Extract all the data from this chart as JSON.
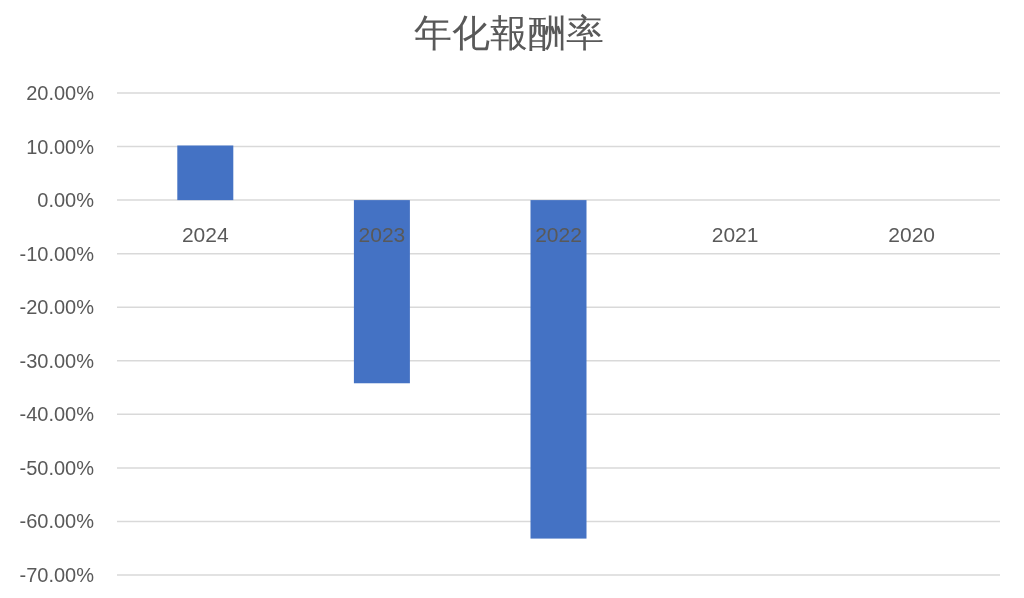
{
  "chart_data": {
    "type": "bar",
    "title": "年化報酬率",
    "categories": [
      "2024",
      "2023",
      "2022",
      "2021",
      "2020"
    ],
    "values": [
      10.2,
      -34.2,
      -63.2,
      null,
      null
    ],
    "color": "#4472c4",
    "ylim": [
      -70,
      20
    ],
    "yticks": [
      {
        "value": 20,
        "label": "20.00%"
      },
      {
        "value": 10,
        "label": "10.00%"
      },
      {
        "value": 0,
        "label": "0.00%"
      },
      {
        "value": -10,
        "label": "-10.00%"
      },
      {
        "value": -20,
        "label": "-20.00%"
      },
      {
        "value": -30,
        "label": "-30.00%"
      },
      {
        "value": -40,
        "label": "-40.00%"
      },
      {
        "value": -50,
        "label": "-50.00%"
      },
      {
        "value": -60,
        "label": "-60.00%"
      },
      {
        "value": -70,
        "label": "-70.00%"
      }
    ],
    "grid": "y"
  }
}
